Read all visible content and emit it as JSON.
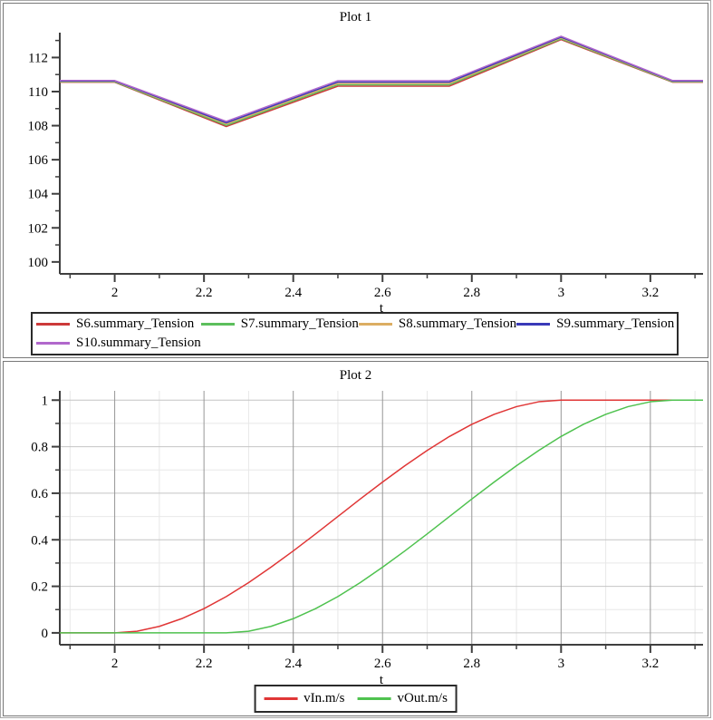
{
  "colors": {
    "axis": "#3f3f3f",
    "grid_major_vertical": "#969696",
    "grid_major_horizontal": "#c4c4c4",
    "grid_minor": "#e8e8e8",
    "legend_border": "#2b2b2b",
    "panel_border": "#787878"
  },
  "chart_data": [
    {
      "type": "line",
      "title": "Plot 1",
      "xlabel": "t",
      "ylabel": "",
      "xlim": [
        1.877,
        3.318
      ],
      "ylim": [
        99.3,
        113.46
      ],
      "x_major_ticks": [
        2,
        2.2,
        2.4,
        2.6,
        2.8,
        3,
        3.2
      ],
      "x_minor_step": 0.1,
      "y_major_ticks": [
        100,
        102,
        104,
        106,
        108,
        110,
        112
      ],
      "y_minor_step": 1,
      "grid": false,
      "legend_position": "bottom",
      "series": [
        {
          "name": "S6.summary_Tension",
          "color": "#cc3939",
          "x": [
            1.877,
            2,
            2.25,
            2.5,
            2.75,
            3,
            3.25,
            3.318
          ],
          "y": [
            110.55,
            110.55,
            107.95,
            110.32,
            110.32,
            113.05,
            110.55,
            110.55
          ]
        },
        {
          "name": "S7.summary_Tension",
          "color": "#5cbf5c",
          "x": [
            1.877,
            2,
            2.25,
            2.5,
            2.75,
            3,
            3.25,
            3.318
          ],
          "y": [
            110.57,
            110.57,
            108.02,
            110.4,
            110.4,
            113.1,
            110.57,
            110.57
          ]
        },
        {
          "name": "S8.summary_Tension",
          "color": "#dcae62",
          "x": [
            1.877,
            2,
            2.25,
            2.5,
            2.75,
            3,
            3.25,
            3.318
          ],
          "y": [
            110.6,
            110.6,
            108.1,
            110.48,
            110.48,
            113.15,
            110.6,
            110.6
          ]
        },
        {
          "name": "S9.summary_Tension",
          "color": "#3939b8",
          "x": [
            1.877,
            2,
            2.25,
            2.5,
            2.75,
            3,
            3.25,
            3.318
          ],
          "y": [
            110.62,
            110.62,
            108.17,
            110.56,
            110.56,
            113.2,
            110.62,
            110.62
          ]
        },
        {
          "name": "S10.summary_Tension",
          "color": "#b168cc",
          "x": [
            1.877,
            2,
            2.25,
            2.5,
            2.75,
            3,
            3.25,
            3.318
          ],
          "y": [
            110.65,
            110.65,
            108.25,
            110.64,
            110.64,
            113.25,
            110.65,
            110.65
          ]
        }
      ]
    },
    {
      "type": "line",
      "title": "Plot 2",
      "xlabel": "t",
      "ylabel": "",
      "xlim": [
        1.877,
        3.318
      ],
      "ylim": [
        -0.051,
        1.04
      ],
      "x_major_ticks": [
        2,
        2.2,
        2.4,
        2.6,
        2.8,
        3,
        3.2
      ],
      "x_minor_step": 0.1,
      "y_major_ticks": [
        0,
        0.2,
        0.4,
        0.6,
        0.8,
        1
      ],
      "y_minor_step": 0.1,
      "grid": true,
      "legend_position": "bottom",
      "series": [
        {
          "name": "vIn.m/s",
          "color": "#e03636",
          "x": [
            1.877,
            1.9,
            1.95,
            2,
            2.05,
            2.1,
            2.15,
            2.2,
            2.25,
            2.3,
            2.35,
            2.4,
            2.45,
            2.5,
            2.55,
            2.6,
            2.65,
            2.7,
            2.75,
            2.8,
            2.85,
            2.9,
            2.95,
            3,
            3.05,
            3.1,
            3.15,
            3.2,
            3.25,
            3.3,
            3.318
          ],
          "y": [
            0,
            0,
            0,
            0,
            0.007,
            0.028,
            0.061,
            0.104,
            0.156,
            0.216,
            0.282,
            0.352,
            0.425,
            0.5,
            0.575,
            0.648,
            0.718,
            0.784,
            0.844,
            0.896,
            0.939,
            0.972,
            0.993,
            1,
            1,
            1,
            1,
            1,
            1,
            1,
            1
          ]
        },
        {
          "name": "vOut.m/s",
          "color": "#4fc24f",
          "x": [
            1.877,
            1.9,
            1.95,
            2,
            2.05,
            2.1,
            2.15,
            2.2,
            2.25,
            2.3,
            2.35,
            2.4,
            2.45,
            2.5,
            2.55,
            2.6,
            2.65,
            2.7,
            2.75,
            2.8,
            2.85,
            2.9,
            2.95,
            3,
            3.05,
            3.1,
            3.15,
            3.2,
            3.25,
            3.3,
            3.318
          ],
          "y": [
            0,
            0,
            0,
            0,
            0,
            0,
            0,
            0,
            0,
            0.007,
            0.028,
            0.061,
            0.104,
            0.156,
            0.216,
            0.282,
            0.352,
            0.425,
            0.5,
            0.575,
            0.648,
            0.718,
            0.784,
            0.844,
            0.896,
            0.939,
            0.972,
            0.993,
            1,
            1,
            1
          ]
        }
      ]
    }
  ]
}
